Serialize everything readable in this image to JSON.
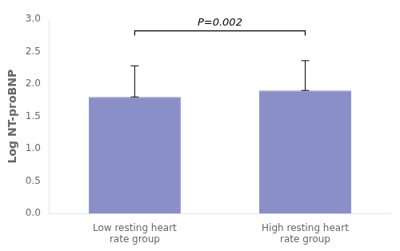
{
  "chart_data": {
    "type": "bar",
    "categories": [
      "Low resting heart\nrate group",
      "High resting heart\nrate group"
    ],
    "values": [
      1.8,
      1.9
    ],
    "error_upper": [
      0.48,
      0.46
    ],
    "error_lower": [
      0.0,
      0.0
    ],
    "color": "#8B8FC8",
    "ylabel": "Log NT-proBNP",
    "ylim": [
      0,
      3.0
    ],
    "yticks": [
      {
        "value": 0,
        "label": "0.0"
      },
      0.5,
      {
        "value": 1.0,
        "label": "1.0"
      },
      1.5,
      {
        "value": 2.0,
        "label": "2.0"
      },
      2.5,
      {
        "value": 3.0,
        "label": "3.0"
      }
    ],
    "annotations": [
      {
        "type": "bracket",
        "text": "P=0.002",
        "categories": [
          "Low resting heart\nrate group",
          "High resting heart\nrate group"
        ],
        "y": 2.82
      }
    ],
    "grid": false
  }
}
